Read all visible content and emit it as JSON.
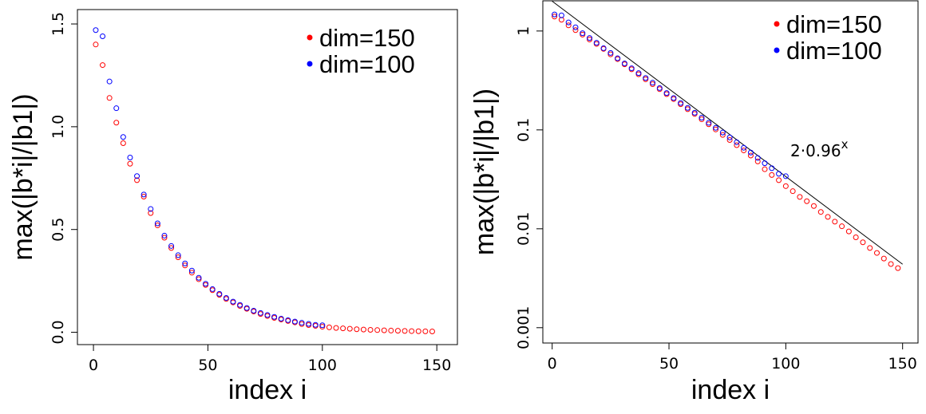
{
  "chart_data": [
    {
      "type": "scatter",
      "x_label": "index i",
      "y_label": "max(|b*i|/|b1|)",
      "xlim": [
        -7,
        159
      ],
      "ylim": [
        -0.06,
        1.57
      ],
      "xticks": [
        0,
        50,
        100,
        150
      ],
      "yticks": [
        {
          "value": 0,
          "label": "0.0"
        },
        {
          "value": 0.5,
          "label": "0.5"
        },
        {
          "value": 1,
          "label": "1.0"
        },
        {
          "value": 1.5,
          "label": "1.5"
        }
      ],
      "log_y": false,
      "legend": "top-right",
      "series": [
        {
          "name": "dim=150",
          "color": "#ff0000",
          "x": [
            1,
            4,
            7,
            10,
            13,
            16,
            19,
            22,
            25,
            28,
            31,
            34,
            37,
            40,
            43,
            46,
            49,
            52,
            55,
            58,
            61,
            64,
            67,
            70,
            73,
            76,
            79,
            82,
            85,
            88,
            91,
            94,
            97,
            100,
            103,
            106,
            109,
            112,
            115,
            118,
            121,
            124,
            127,
            130,
            133,
            136,
            139,
            142,
            145,
            148
          ],
          "values": [
            1.4,
            1.3,
            1.14,
            1.02,
            0.92,
            0.82,
            0.74,
            0.66,
            0.58,
            0.52,
            0.46,
            0.41,
            0.365,
            0.325,
            0.29,
            0.258,
            0.23,
            0.205,
            0.182,
            0.162,
            0.145,
            0.128,
            0.114,
            0.101,
            0.089,
            0.079,
            0.07,
            0.062,
            0.055,
            0.048,
            0.04,
            0.035,
            0.031,
            0.027,
            0.024,
            0.021,
            0.019,
            0.017,
            0.0148,
            0.0132,
            0.0118,
            0.0106,
            0.0094,
            0.0082,
            0.0073,
            0.0064,
            0.0057,
            0.005,
            0.0044,
            0.004
          ]
        },
        {
          "name": "dim=100",
          "color": "#0000ff",
          "x": [
            1,
            4,
            7,
            10,
            13,
            16,
            19,
            22,
            25,
            28,
            31,
            34,
            37,
            40,
            43,
            46,
            49,
            52,
            55,
            58,
            61,
            64,
            67,
            70,
            73,
            76,
            79,
            82,
            85,
            88,
            91,
            94,
            97,
            100
          ],
          "values": [
            1.47,
            1.44,
            1.22,
            1.09,
            0.95,
            0.85,
            0.76,
            0.67,
            0.6,
            0.53,
            0.47,
            0.42,
            0.375,
            0.335,
            0.3,
            0.265,
            0.236,
            0.21,
            0.187,
            0.167,
            0.149,
            0.133,
            0.118,
            0.105,
            0.094,
            0.084,
            0.075,
            0.066,
            0.059,
            0.052,
            0.046,
            0.041,
            0.036,
            0.034
          ]
        }
      ]
    },
    {
      "type": "scatter",
      "x_label": "index i",
      "y_label": "max(|b*i|/|b1|)",
      "xlim": [
        -4,
        156.6
      ],
      "ylim": [
        0.0007,
        2.02
      ],
      "xticks": [
        0,
        50,
        100,
        150
      ],
      "yticks": [
        1,
        0.1,
        0.01,
        0.001
      ],
      "log_y": true,
      "legend": "top-right",
      "reference_line": {
        "x": [
          0,
          150
        ],
        "values": [
          2,
          0.00438
        ],
        "color": "#000000"
      },
      "annotation": {
        "text": "2·0.96",
        "superscript": "x"
      },
      "series": [
        {
          "name": "dim=150",
          "color": "#ff0000",
          "x": [
            1,
            4,
            7,
            10,
            13,
            16,
            19,
            22,
            25,
            28,
            31,
            34,
            37,
            40,
            43,
            46,
            49,
            52,
            55,
            58,
            61,
            64,
            67,
            70,
            73,
            76,
            79,
            82,
            85,
            88,
            91,
            94,
            97,
            100,
            103,
            106,
            109,
            112,
            115,
            118,
            121,
            124,
            127,
            130,
            133,
            136,
            139,
            142,
            145,
            148
          ],
          "values": [
            1.4,
            1.3,
            1.14,
            1.02,
            0.92,
            0.82,
            0.74,
            0.66,
            0.58,
            0.52,
            0.46,
            0.41,
            0.365,
            0.325,
            0.29,
            0.258,
            0.23,
            0.205,
            0.182,
            0.162,
            0.145,
            0.128,
            0.114,
            0.101,
            0.089,
            0.079,
            0.07,
            0.062,
            0.055,
            0.048,
            0.04,
            0.035,
            0.031,
            0.027,
            0.024,
            0.021,
            0.019,
            0.017,
            0.0148,
            0.0132,
            0.0118,
            0.0106,
            0.0094,
            0.0082,
            0.0073,
            0.0064,
            0.0057,
            0.005,
            0.0044,
            0.004
          ]
        },
        {
          "name": "dim=100",
          "color": "#0000ff",
          "x": [
            1,
            4,
            7,
            10,
            13,
            16,
            19,
            22,
            25,
            28,
            31,
            34,
            37,
            40,
            43,
            46,
            49,
            52,
            55,
            58,
            61,
            64,
            67,
            70,
            73,
            76,
            79,
            82,
            85,
            88,
            91,
            94,
            97,
            100
          ],
          "values": [
            1.47,
            1.44,
            1.22,
            1.09,
            0.95,
            0.85,
            0.76,
            0.67,
            0.6,
            0.53,
            0.47,
            0.42,
            0.375,
            0.335,
            0.3,
            0.265,
            0.236,
            0.21,
            0.187,
            0.167,
            0.149,
            0.133,
            0.118,
            0.105,
            0.094,
            0.084,
            0.075,
            0.066,
            0.059,
            0.052,
            0.046,
            0.041,
            0.036,
            0.034
          ]
        }
      ]
    }
  ]
}
